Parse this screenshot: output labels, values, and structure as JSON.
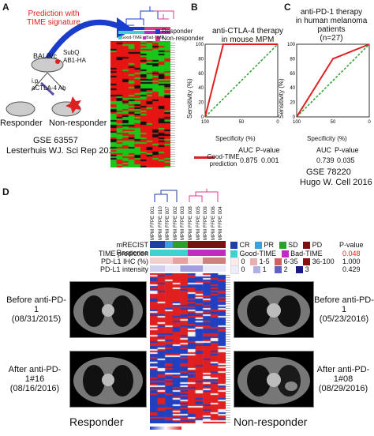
{
  "panels": {
    "A": {
      "label": "A",
      "prediction_line1": "Prediction with",
      "prediction_line2": "TIME signature",
      "mouse_label": "BALB/c",
      "subq_label": "SubQ",
      "ab_label": "AB1-HA",
      "ip_label": "i.p.",
      "drug_label": "aCTLA-4 Ab",
      "responder": "Responder",
      "non_responder": "Non-responder",
      "gse": "GSE 63557",
      "citation": "Lesterhuis WJ. Sci Rep 2015",
      "legend_responder": "Responder",
      "legend_non_responder": "Non-responder",
      "legend_good": "Good-TIME",
      "legend_bad": "Bad-TIME",
      "colors": {
        "responder": "#1a3dcc",
        "non_responder": "#e03a8c",
        "heat_red": "#e81414",
        "heat_green": "#18c818"
      }
    },
    "B": {
      "label": "B",
      "title_line1": "anti-CTLA-4 therapy",
      "title_line2": "in mouse MPM",
      "xlabel": "Specificity (%)",
      "ylabel": "Sensitivity (%)",
      "auc_header": "AUC",
      "p_header": "P-value",
      "auc": "0.875",
      "p": "0.001",
      "legend_line1": "Good-TIME",
      "legend_line2": "prediction"
    },
    "C": {
      "label": "C",
      "title_line1": "anti-PD-1 therapy",
      "title_line2": "in human melanoma patients",
      "title_line3": "(n=27)",
      "xlabel": "Specificity (%)",
      "ylabel": "Sensitivity (%)",
      "auc_header": "AUC",
      "p_header": "P-value",
      "auc": "0.739",
      "p": "0.035",
      "gse": "GSE 78220",
      "citation": "Hugo W. Cell 2016"
    },
    "D": {
      "label": "D",
      "row_mrecist": "mRECIST Response",
      "row_time": "TIME prediction",
      "row_pdl1_ihc": "PD-L1 IHC (%)",
      "row_pdl1_int": "PD-L1 intensity",
      "legend_cr": "CR",
      "legend_pr": "PR",
      "legend_sd": "SD",
      "legend_pd": "PD",
      "legend_good": "Good-TIME",
      "legend_bad": "Bad-TIME",
      "ihc_0": "0",
      "ihc_1": "1-5",
      "ihc_2": "6-35",
      "ihc_3": "36-100",
      "int_0": "0",
      "int_1": "1",
      "int_2": "2",
      "int_3": "3",
      "p_header": "P-value",
      "p_time": "0.048",
      "p_ihc": "1.000",
      "p_int": "0.429",
      "left_before_1": "Before anti-PD-1",
      "left_before_2": "(08/31/2015)",
      "left_after_1": "After anti-PD-1#16",
      "left_after_2": "(08/16/2016)",
      "right_before_1": "Before anti-PD-1",
      "right_before_2": "(05/23/2016)",
      "right_after_1": "After anti-PD-1#08",
      "right_after_2": "(08/29/2016)",
      "responder": "Responder",
      "non_responder": "Non-responder",
      "samples": [
        "MPM FFPE 001",
        "MPM FFPE 010",
        "MPM FFPE 007",
        "MPM FFPE 002",
        "MPM FFPE 003",
        "MPM FFPE 008",
        "MPM FFPE 005",
        "MPM FFPE 009",
        "MPM FFPE 006",
        "MPM FFPE 004"
      ],
      "colors": {
        "cr": "#1f3fa8",
        "pr": "#3aa0e0",
        "sd": "#2ca02c",
        "pd": "#7a1010",
        "good": "#3fd0d0",
        "bad": "#c02cc0",
        "heat_red": "#e02020",
        "heat_blue": "#2040c0"
      }
    }
  }
}
